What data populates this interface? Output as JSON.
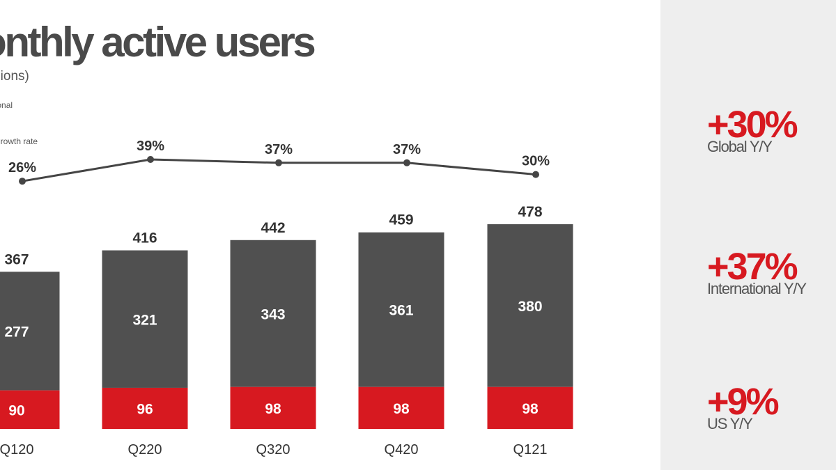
{
  "header": {
    "title": "lonthly active users",
    "subtitle": "illions)"
  },
  "legend": {
    "international": "rnational",
    "growth": "growth rate"
  },
  "colors": {
    "us": "#d71920",
    "international": "#505050",
    "line": "#454545",
    "text": "#333333",
    "panel": "#eeeeee"
  },
  "stats": [
    {
      "value": "+30%",
      "label": "Global Y/Y"
    },
    {
      "value": "+37%",
      "label": "International Y/Y"
    },
    {
      "value": "+9%",
      "label": "US Y/Y"
    }
  ],
  "chart_data": {
    "type": "bar",
    "stacked": true,
    "categories": [
      "Q120",
      "Q220",
      "Q320",
      "Q420",
      "Q121"
    ],
    "series": [
      {
        "key": "us",
        "values": [
          90,
          96,
          98,
          98,
          98
        ]
      },
      {
        "key": "international",
        "name": "rnational",
        "values": [
          277,
          321,
          343,
          361,
          380
        ]
      }
    ],
    "totals": [
      367,
      416,
      442,
      459,
      478
    ],
    "line": {
      "name": "growth rate",
      "values": [
        26,
        39,
        37,
        37,
        30
      ],
      "labels": [
        "26%",
        "39%",
        "37%",
        "37%",
        "30%"
      ]
    },
    "title": "lonthly active users",
    "subtitle": "illions)",
    "ylim": [
      0,
      478
    ]
  }
}
